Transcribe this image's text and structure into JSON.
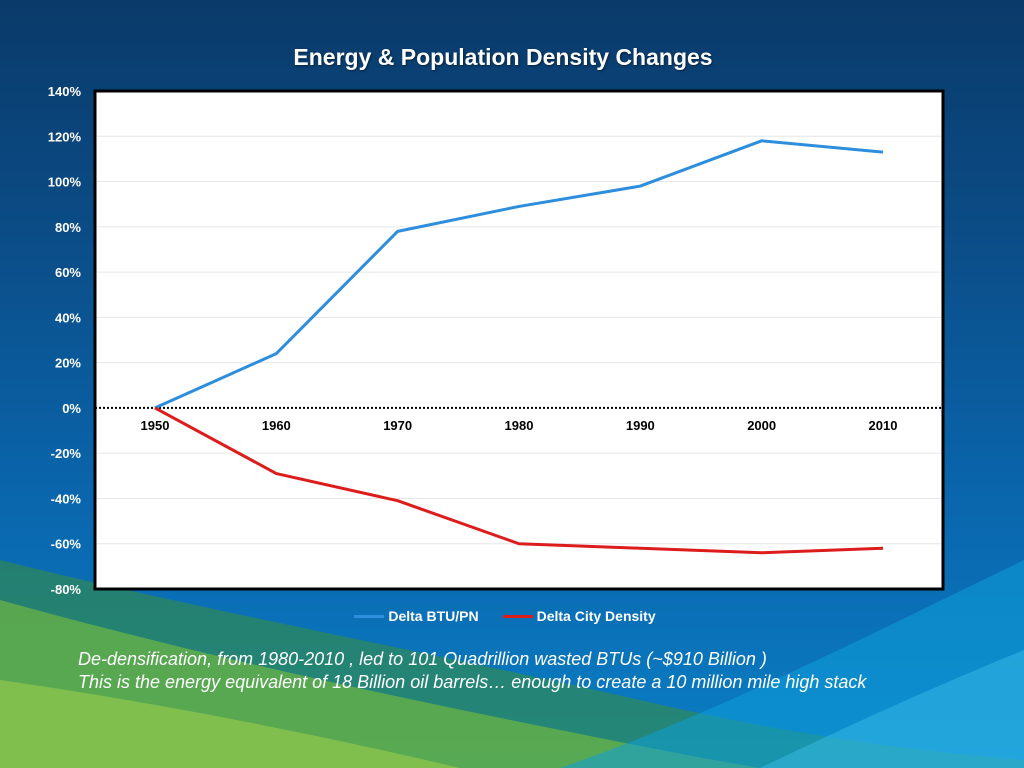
{
  "colors": {
    "series_1": "#2e8ede",
    "series_2": "#dd1c1c",
    "plot_bg": "#ffffff",
    "text": "#ffffff"
  },
  "chart_data": {
    "type": "line",
    "title": "Energy & Population Density Changes",
    "x": [
      "1950",
      "1960",
      "1970",
      "1980",
      "1990",
      "2000",
      "2010"
    ],
    "series": [
      {
        "name": "Delta BTU/PN",
        "values": [
          0,
          24,
          78,
          89,
          98,
          118,
          113
        ]
      },
      {
        "name": "Delta City Density",
        "values": [
          0,
          -29,
          -41,
          -60,
          -62,
          -64,
          -62
        ]
      }
    ],
    "y_ticks": [
      "140%",
      "120%",
      "100%",
      "80%",
      "60%",
      "40%",
      "20%",
      "0%",
      "-20%",
      "-40%",
      "-60%",
      "-80%"
    ],
    "ylim": [
      -80,
      140
    ],
    "y_unit": "%",
    "grid": true,
    "zero_line": "dotted",
    "legend_position": "bottom"
  },
  "caption": {
    "line1": "De-densification, from 1980-2010 , led to 101 Quadrillion wasted BTUs (~$910 Billion )",
    "line2": "This is the energy equivalent of 18 Billion  oil barrels… enough to create a 10 million mile high stack"
  }
}
